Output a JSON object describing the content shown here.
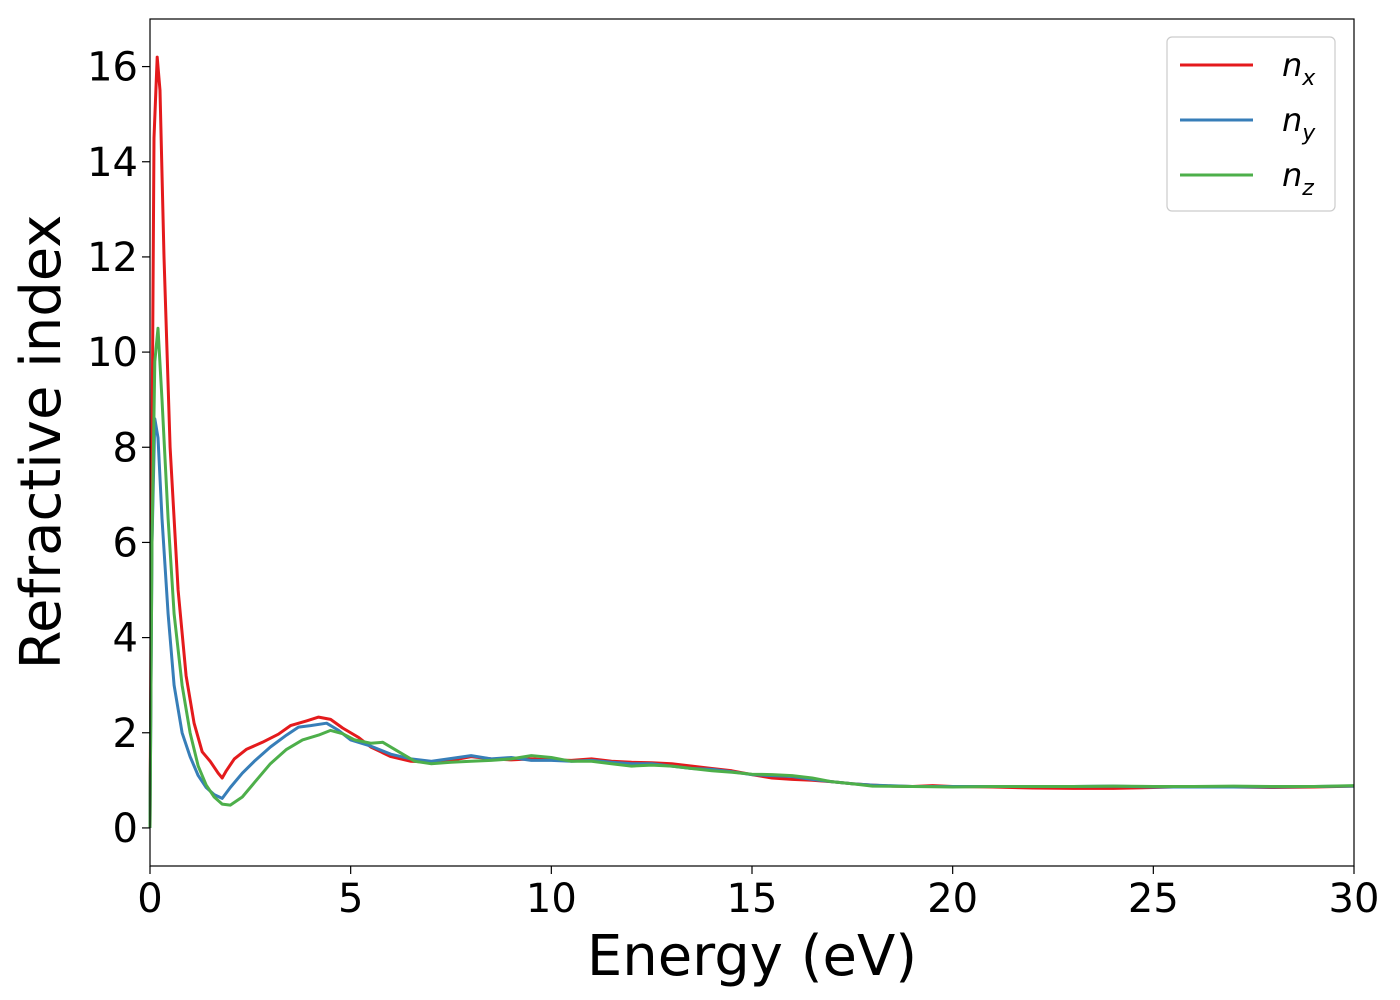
{
  "chart_data": {
    "type": "line",
    "xlabel": "Energy (eV)",
    "ylabel": "Refractive index",
    "xlim": [
      0,
      30
    ],
    "ylim": [
      -0.8,
      17
    ],
    "xticks": [
      0,
      5,
      10,
      15,
      20,
      25,
      30
    ],
    "yticks": [
      0,
      2,
      4,
      6,
      8,
      10,
      12,
      14,
      16
    ],
    "grid": false,
    "legend_position": "top-right",
    "series": [
      {
        "name": "n",
        "subscript": "x",
        "color": "#e41a1c",
        "points": [
          [
            0,
            0
          ],
          [
            0.05,
            8
          ],
          [
            0.1,
            14.5
          ],
          [
            0.18,
            16.2
          ],
          [
            0.25,
            15.5
          ],
          [
            0.35,
            12
          ],
          [
            0.5,
            8
          ],
          [
            0.7,
            5
          ],
          [
            0.9,
            3.2
          ],
          [
            1.1,
            2.2
          ],
          [
            1.3,
            1.6
          ],
          [
            1.5,
            1.4
          ],
          [
            1.7,
            1.15
          ],
          [
            1.8,
            1.05
          ],
          [
            1.9,
            1.2
          ],
          [
            2.1,
            1.45
          ],
          [
            2.4,
            1.65
          ],
          [
            2.8,
            1.8
          ],
          [
            3.2,
            1.97
          ],
          [
            3.5,
            2.15
          ],
          [
            3.9,
            2.25
          ],
          [
            4.2,
            2.33
          ],
          [
            4.5,
            2.28
          ],
          [
            4.8,
            2.1
          ],
          [
            5.2,
            1.9
          ],
          [
            5.5,
            1.7
          ],
          [
            6,
            1.5
          ],
          [
            6.5,
            1.4
          ],
          [
            7,
            1.38
          ],
          [
            7.5,
            1.42
          ],
          [
            8,
            1.5
          ],
          [
            8.5,
            1.45
          ],
          [
            9,
            1.43
          ],
          [
            9.5,
            1.45
          ],
          [
            10,
            1.43
          ],
          [
            10.5,
            1.42
          ],
          [
            11,
            1.45
          ],
          [
            11.5,
            1.4
          ],
          [
            12,
            1.38
          ],
          [
            12.5,
            1.37
          ],
          [
            13,
            1.35
          ],
          [
            13.5,
            1.3
          ],
          [
            14,
            1.25
          ],
          [
            14.5,
            1.2
          ],
          [
            15,
            1.12
          ],
          [
            15.5,
            1.05
          ],
          [
            16,
            1.02
          ],
          [
            16.5,
            1.0
          ],
          [
            17,
            0.97
          ],
          [
            17.5,
            0.93
          ],
          [
            18,
            0.9
          ],
          [
            18.5,
            0.88
          ],
          [
            19,
            0.87
          ],
          [
            19.5,
            0.89
          ],
          [
            20,
            0.87
          ],
          [
            21,
            0.86
          ],
          [
            22,
            0.84
          ],
          [
            23,
            0.83
          ],
          [
            24,
            0.83
          ],
          [
            25,
            0.85
          ],
          [
            26,
            0.87
          ],
          [
            27,
            0.86
          ],
          [
            28,
            0.85
          ],
          [
            29,
            0.86
          ],
          [
            30,
            0.88
          ]
        ]
      },
      {
        "name": "n",
        "subscript": "y",
        "color": "#377eb8",
        "points": [
          [
            0,
            0
          ],
          [
            0.05,
            6
          ],
          [
            0.12,
            8.6
          ],
          [
            0.2,
            8.2
          ],
          [
            0.3,
            6.5
          ],
          [
            0.45,
            4.5
          ],
          [
            0.6,
            3
          ],
          [
            0.8,
            2
          ],
          [
            1.0,
            1.5
          ],
          [
            1.2,
            1.1
          ],
          [
            1.4,
            0.85
          ],
          [
            1.6,
            0.7
          ],
          [
            1.8,
            0.62
          ],
          [
            2.0,
            0.85
          ],
          [
            2.3,
            1.15
          ],
          [
            2.6,
            1.4
          ],
          [
            3.0,
            1.7
          ],
          [
            3.4,
            1.95
          ],
          [
            3.7,
            2.12
          ],
          [
            4.0,
            2.15
          ],
          [
            4.4,
            2.2
          ],
          [
            4.7,
            2.05
          ],
          [
            5.0,
            1.85
          ],
          [
            5.5,
            1.72
          ],
          [
            6,
            1.55
          ],
          [
            6.5,
            1.45
          ],
          [
            7,
            1.4
          ],
          [
            7.5,
            1.46
          ],
          [
            8,
            1.52
          ],
          [
            8.5,
            1.45
          ],
          [
            9,
            1.48
          ],
          [
            9.5,
            1.42
          ],
          [
            10,
            1.42
          ],
          [
            10.5,
            1.4
          ],
          [
            11,
            1.42
          ],
          [
            11.5,
            1.38
          ],
          [
            12,
            1.35
          ],
          [
            12.5,
            1.35
          ],
          [
            13,
            1.3
          ],
          [
            13.5,
            1.25
          ],
          [
            14,
            1.23
          ],
          [
            14.5,
            1.18
          ],
          [
            15,
            1.12
          ],
          [
            15.5,
            1.1
          ],
          [
            16,
            1.08
          ],
          [
            16.5,
            1.02
          ],
          [
            17,
            0.97
          ],
          [
            17.5,
            0.93
          ],
          [
            18,
            0.9
          ],
          [
            19,
            0.87
          ],
          [
            20,
            0.87
          ],
          [
            21,
            0.87
          ],
          [
            22,
            0.87
          ],
          [
            23,
            0.87
          ],
          [
            24,
            0.88
          ],
          [
            25,
            0.86
          ],
          [
            26,
            0.86
          ],
          [
            27,
            0.86
          ],
          [
            28,
            0.86
          ],
          [
            29,
            0.87
          ],
          [
            30,
            0.88
          ]
        ]
      },
      {
        "name": "n",
        "subscript": "z",
        "color": "#4daf4a",
        "points": [
          [
            0,
            0
          ],
          [
            0.05,
            6
          ],
          [
            0.12,
            9.8
          ],
          [
            0.2,
            10.5
          ],
          [
            0.3,
            9
          ],
          [
            0.45,
            6.5
          ],
          [
            0.6,
            4.5
          ],
          [
            0.8,
            3
          ],
          [
            1.0,
            2
          ],
          [
            1.2,
            1.3
          ],
          [
            1.4,
            0.9
          ],
          [
            1.6,
            0.65
          ],
          [
            1.8,
            0.5
          ],
          [
            2.0,
            0.48
          ],
          [
            2.3,
            0.65
          ],
          [
            2.6,
            0.95
          ],
          [
            3.0,
            1.35
          ],
          [
            3.4,
            1.65
          ],
          [
            3.8,
            1.85
          ],
          [
            4.2,
            1.95
          ],
          [
            4.5,
            2.05
          ],
          [
            4.8,
            1.98
          ],
          [
            5.1,
            1.85
          ],
          [
            5.5,
            1.78
          ],
          [
            5.8,
            1.8
          ],
          [
            6.2,
            1.6
          ],
          [
            6.6,
            1.4
          ],
          [
            7,
            1.35
          ],
          [
            7.5,
            1.38
          ],
          [
            8,
            1.4
          ],
          [
            8.5,
            1.42
          ],
          [
            9,
            1.45
          ],
          [
            9.5,
            1.52
          ],
          [
            10,
            1.48
          ],
          [
            10.5,
            1.4
          ],
          [
            11,
            1.4
          ],
          [
            11.5,
            1.35
          ],
          [
            12,
            1.3
          ],
          [
            12.5,
            1.32
          ],
          [
            13,
            1.3
          ],
          [
            13.5,
            1.25
          ],
          [
            14,
            1.2
          ],
          [
            14.5,
            1.17
          ],
          [
            15,
            1.13
          ],
          [
            15.5,
            1.12
          ],
          [
            16,
            1.1
          ],
          [
            16.5,
            1.05
          ],
          [
            17,
            0.97
          ],
          [
            17.5,
            0.93
          ],
          [
            18,
            0.88
          ],
          [
            19,
            0.87
          ],
          [
            20,
            0.86
          ],
          [
            21,
            0.87
          ],
          [
            22,
            0.87
          ],
          [
            23,
            0.87
          ],
          [
            24,
            0.88
          ],
          [
            25,
            0.87
          ],
          [
            26,
            0.87
          ],
          [
            27,
            0.88
          ],
          [
            28,
            0.87
          ],
          [
            29,
            0.87
          ],
          [
            30,
            0.89
          ]
        ]
      }
    ]
  }
}
